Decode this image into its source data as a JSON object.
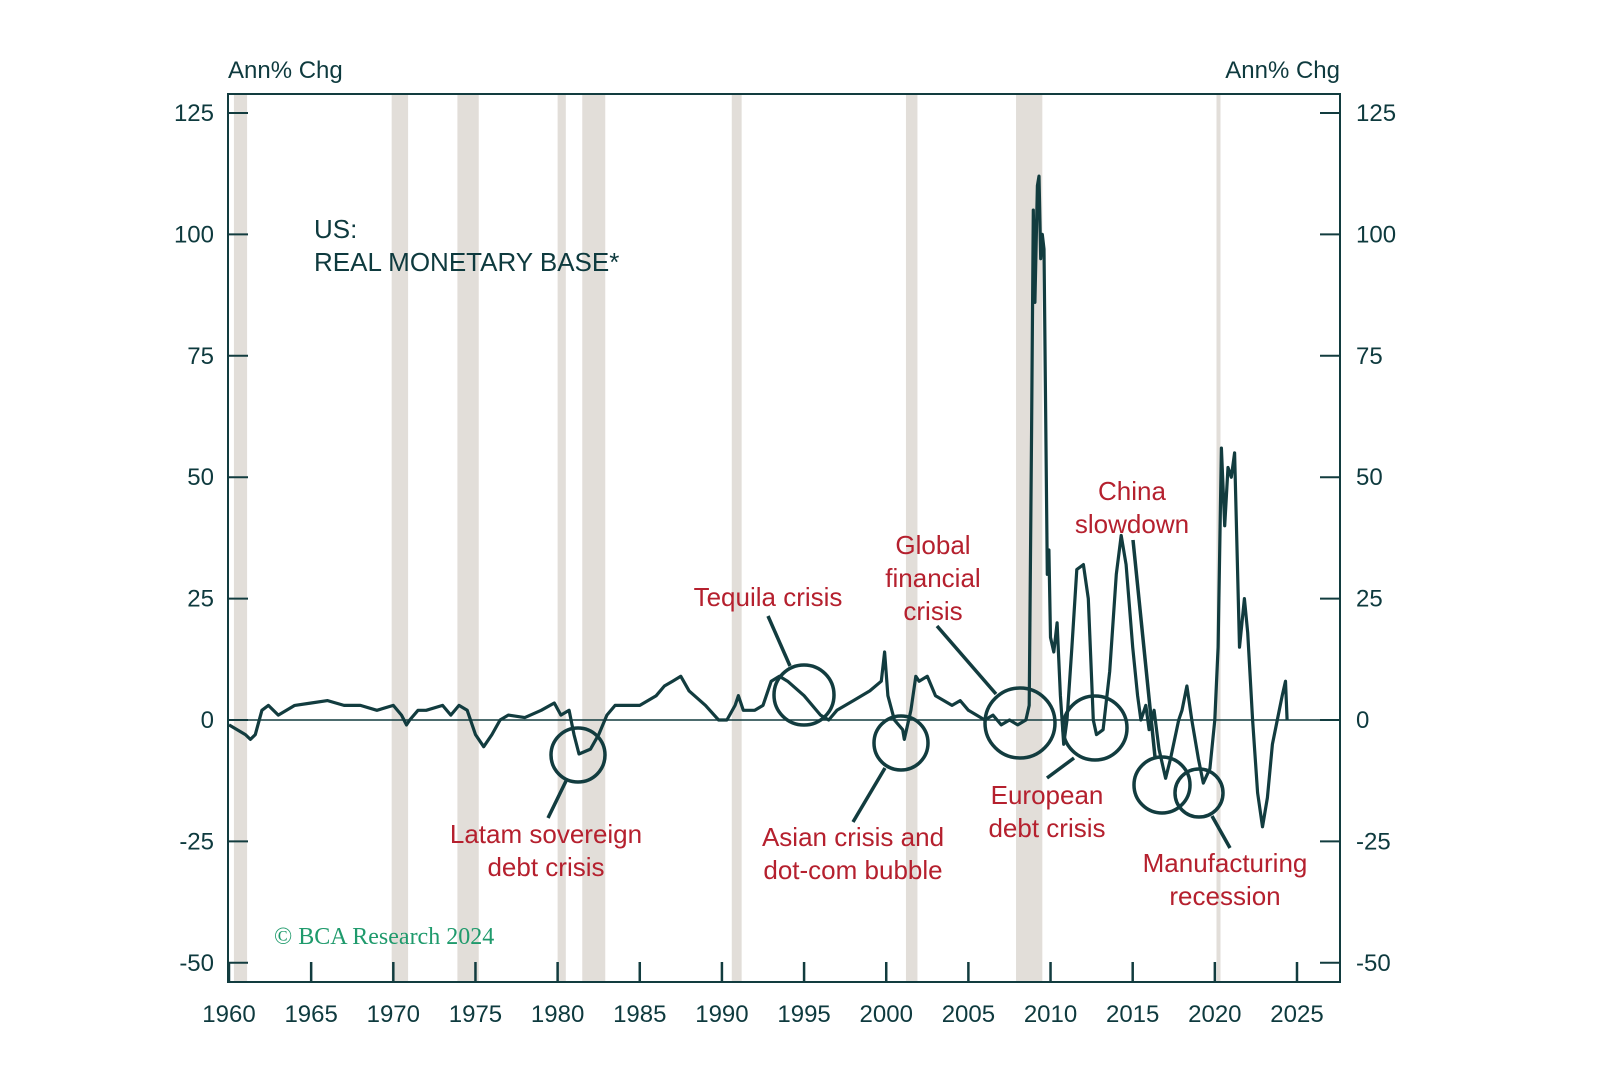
{
  "chart_data": {
    "type": "line",
    "title": "US:",
    "subtitle": "REAL MONETARY BASE*",
    "ylabel_left": "Ann% Chg",
    "ylabel_right": "Ann% Chg",
    "xlim": [
      1960,
      2026.5
    ],
    "ylim": [
      -50,
      127
    ],
    "x_ticks": [
      1960,
      1965,
      1970,
      1975,
      1980,
      1985,
      1990,
      1995,
      2000,
      2005,
      2010,
      2015,
      2020,
      2025
    ],
    "x_tick_labels": [
      "1960",
      "1965",
      "1970",
      "1975",
      "1980",
      "1985",
      "1990",
      "1995",
      "2000",
      "2005",
      "2010",
      "2015",
      "2020",
      "2025"
    ],
    "y_ticks": [
      125,
      100,
      75,
      50,
      25,
      0,
      -25,
      -50
    ],
    "y_tick_labels": [
      "125",
      "100",
      "75",
      "50",
      "25",
      "0",
      "-25",
      "-50"
    ],
    "recessions": [
      [
        1960.3,
        1961.1
      ],
      [
        1969.9,
        1970.9
      ],
      [
        1973.9,
        1975.2
      ],
      [
        1980.0,
        1980.5
      ],
      [
        1981.5,
        1982.9
      ],
      [
        1990.6,
        1991.2
      ],
      [
        2001.2,
        2001.9
      ],
      [
        2007.9,
        2009.5
      ],
      [
        2020.1,
        2020.3
      ]
    ],
    "series": [
      {
        "name": "Real monetary base",
        "color": "#123c3f",
        "x": [
          1960,
          1960.5,
          1961,
          1961.3,
          1961.6,
          1962,
          1962.4,
          1963,
          1963.5,
          1964,
          1965,
          1966,
          1967,
          1968,
          1969,
          1970,
          1970.5,
          1970.8,
          1971,
          1971.5,
          1972,
          1973,
          1973.5,
          1974,
          1974.5,
          1975,
          1975.5,
          1976,
          1976.5,
          1977,
          1978,
          1979,
          1979.8,
          1980.2,
          1980.7,
          1981,
          1981.3,
          1982,
          1982.5,
          1983,
          1983.5,
          1984,
          1985,
          1986,
          1986.5,
          1987,
          1987.5,
          1988,
          1989,
          1989.8,
          1990.3,
          1990.8,
          1991,
          1991.3,
          1992,
          1992.5,
          1993,
          1993.5,
          1994,
          1995,
          1996,
          1996.5,
          1997,
          1998,
          1999,
          1999.7,
          1999.9,
          2000.1,
          2000.5,
          2001,
          2001.1,
          2001.5,
          2001.8,
          2002,
          2002.5,
          2003,
          2004,
          2004.5,
          2005,
          2005.5,
          2006,
          2006.5,
          2007,
          2007.5,
          2008,
          2008.5,
          2008.7,
          2008.85,
          2008.95,
          2009.05,
          2009.2,
          2009.3,
          2009.4,
          2009.5,
          2009.6,
          2009.8,
          2009.9,
          2010,
          2010.2,
          2010.4,
          2010.6,
          2010.8,
          2011,
          2011.3,
          2011.6,
          2012,
          2012.3,
          2012.6,
          2012.8,
          2013.2,
          2013.6,
          2014,
          2014.3,
          2014.6,
          2015,
          2015.3,
          2015.5,
          2015.8,
          2016,
          2016.3,
          2016.6,
          2017,
          2017.3,
          2017.8,
          2018,
          2018.3,
          2018.6,
          2019,
          2019.3,
          2019.7,
          2020,
          2020.2,
          2020.4,
          2020.6,
          2020.8,
          2021,
          2021.2,
          2021.5,
          2021.8,
          2022,
          2022.3,
          2022.6,
          2022.9,
          2023.2,
          2023.5,
          2023.8,
          2024.1,
          2024.3,
          2024.4
        ],
        "y": [
          -1,
          -2,
          -3,
          -4,
          -3,
          2,
          3,
          1,
          2,
          3,
          3.5,
          4,
          3,
          3,
          2,
          3,
          1,
          -1,
          0,
          2,
          2,
          3,
          1,
          3,
          2,
          -3,
          -5.5,
          -3,
          0,
          1,
          0.5,
          2,
          3.5,
          1,
          2,
          -3,
          -7,
          -6,
          -3,
          1,
          3,
          3,
          3,
          5,
          7,
          8,
          9,
          6,
          3,
          0,
          0,
          3,
          5,
          2,
          2,
          3,
          8,
          9,
          8,
          5,
          1,
          0,
          2,
          4,
          6,
          8,
          14,
          5,
          0,
          -2,
          -4,
          2,
          9,
          8,
          9,
          5,
          3,
          4,
          2,
          1,
          0,
          1,
          -1,
          0,
          -1,
          0,
          3,
          60,
          105,
          86,
          110,
          112,
          95,
          100,
          97,
          30,
          35,
          17,
          14,
          20,
          5,
          -5,
          0,
          15,
          31,
          32,
          25,
          0,
          -3,
          -2,
          10,
          30,
          38,
          32,
          15,
          5,
          0,
          3,
          -2,
          2,
          -6,
          -12,
          -8,
          0,
          2,
          7,
          0,
          -8,
          -13,
          -10,
          0,
          15,
          56,
          40,
          52,
          50,
          55,
          15,
          25,
          18,
          0,
          -15,
          -22,
          -16,
          -5,
          0,
          5,
          8,
          0
        ]
      }
    ],
    "annotations": [
      {
        "text": [
          "Latam sovereign",
          "debt crisis"
        ]
      },
      {
        "text": [
          "Tequila crisis"
        ]
      },
      {
        "text": [
          "Asian crisis and",
          "dot-com bubble"
        ]
      },
      {
        "text": [
          "Global",
          "financial",
          "crisis"
        ]
      },
      {
        "text": [
          "European",
          "debt crisis"
        ]
      },
      {
        "text": [
          "China",
          "slowdown"
        ]
      },
      {
        "text": [
          "Manufacturing",
          "recession"
        ]
      }
    ],
    "grid": false
  },
  "colors": {
    "line": "#123c3f",
    "axis": "#123c3f",
    "recession": "#e2ded9",
    "annotation": "#b5202e",
    "watermark": "#1f9a6c"
  },
  "watermark": "© BCA Research 2024"
}
